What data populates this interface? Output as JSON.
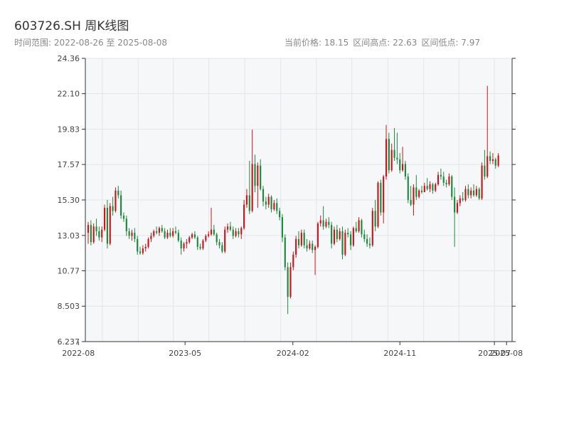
{
  "header": {
    "title": "603726.SH 周K线图",
    "range_label": "时间范围: 2022-08-26 至 2025-08-08",
    "current_price": "当前价格: 18.15",
    "range_high": "区间高点: 22.63",
    "range_low": "区间低点: 7.97"
  },
  "colors": {
    "up": "#c8161d",
    "down": "#1a8b3c",
    "plot_bg": "#f6f7f9",
    "grid": "#e3e5ea",
    "axis": "#333333"
  },
  "chart_data": {
    "type": "candlestick",
    "title": "603726.SH 周K线图",
    "start_date": "2022-08-26",
    "end_date": "2025-08-08",
    "ylim": [
      6.237,
      24.36
    ],
    "y_ticks": [
      "6.237",
      "8.503",
      "10.77",
      "13.03",
      "15.30",
      "17.57",
      "19.83",
      "22.10",
      "24.36"
    ],
    "x_ticks": [
      {
        "date": "2022-08-01",
        "label": "2022-08"
      },
      {
        "date": "2023-05-01",
        "label": "2023-05"
      },
      {
        "date": "2024-02-01",
        "label": "2024-02"
      },
      {
        "date": "2024-11-01",
        "label": "2024-11"
      },
      {
        "date": "2025-07-01",
        "label": "2025-07"
      },
      {
        "date": "2025-08-01",
        "label": "2025-08"
      }
    ],
    "grid": true,
    "candles": [
      [
        13.2,
        13.9,
        12.5,
        13.7
      ],
      [
        13.7,
        14.0,
        12.4,
        12.6
      ],
      [
        12.6,
        13.8,
        12.5,
        13.6
      ],
      [
        13.6,
        14.1,
        13.0,
        13.3
      ],
      [
        13.3,
        13.6,
        12.7,
        12.9
      ],
      [
        12.9,
        13.6,
        12.6,
        13.4
      ],
      [
        13.4,
        15.0,
        13.3,
        14.8
      ],
      [
        14.8,
        15.3,
        12.2,
        12.5
      ],
      [
        12.5,
        15.1,
        12.4,
        14.9
      ],
      [
        14.9,
        15.5,
        14.3,
        14.6
      ],
      [
        14.6,
        16.1,
        14.5,
        15.9
      ],
      [
        15.9,
        16.2,
        15.4,
        15.6
      ],
      [
        15.6,
        15.9,
        14.1,
        14.3
      ],
      [
        14.3,
        14.5,
        13.9,
        14.1
      ],
      [
        14.1,
        14.3,
        13.0,
        13.3
      ],
      [
        13.3,
        13.5,
        12.8,
        13.0
      ],
      [
        13.0,
        13.4,
        12.7,
        13.2
      ],
      [
        13.2,
        13.5,
        12.6,
        12.8
      ],
      [
        12.8,
        13.0,
        11.8,
        12.0
      ],
      [
        12.0,
        12.3,
        11.8,
        11.9
      ],
      [
        11.9,
        12.4,
        11.8,
        12.2
      ],
      [
        12.2,
        12.5,
        12.0,
        12.3
      ],
      [
        12.3,
        12.9,
        12.2,
        12.8
      ],
      [
        12.8,
        13.2,
        12.6,
        13.0
      ],
      [
        13.0,
        13.4,
        12.9,
        13.3
      ],
      [
        13.3,
        13.6,
        13.1,
        13.2
      ],
      [
        13.2,
        13.6,
        13.0,
        13.5
      ],
      [
        13.5,
        13.7,
        13.2,
        13.3
      ],
      [
        13.3,
        13.5,
        12.8,
        12.9
      ],
      [
        12.9,
        13.4,
        12.8,
        13.2
      ],
      [
        13.2,
        13.5,
        12.9,
        13.0
      ],
      [
        13.0,
        13.5,
        12.9,
        13.3
      ],
      [
        13.3,
        13.6,
        13.1,
        13.2
      ],
      [
        13.2,
        13.4,
        12.6,
        12.7
      ],
      [
        12.7,
        12.9,
        11.8,
        12.2
      ],
      [
        12.2,
        12.6,
        12.0,
        12.5
      ],
      [
        12.5,
        12.8,
        12.2,
        12.6
      ],
      [
        12.6,
        13.0,
        12.5,
        12.9
      ],
      [
        12.9,
        13.2,
        12.8,
        13.1
      ],
      [
        13.1,
        13.3,
        12.8,
        12.9
      ],
      [
        12.9,
        13.0,
        12.1,
        12.3
      ],
      [
        12.3,
        12.5,
        12.1,
        12.2
      ],
      [
        12.2,
        12.8,
        12.1,
        12.7
      ],
      [
        12.7,
        13.1,
        12.6,
        13.0
      ],
      [
        13.0,
        13.3,
        12.9,
        13.1
      ],
      [
        13.1,
        14.8,
        13.0,
        13.4
      ],
      [
        13.4,
        13.7,
        13.0,
        13.1
      ],
      [
        13.1,
        13.2,
        12.4,
        12.6
      ],
      [
        12.6,
        12.8,
        12.2,
        12.4
      ],
      [
        12.4,
        12.6,
        11.9,
        12.0
      ],
      [
        12.0,
        13.6,
        11.9,
        13.4
      ],
      [
        13.4,
        13.8,
        13.2,
        13.6
      ],
      [
        13.6,
        13.9,
        13.3,
        13.4
      ],
      [
        13.4,
        13.6,
        12.8,
        13.0
      ],
      [
        13.0,
        13.5,
        12.9,
        13.3
      ],
      [
        13.3,
        13.5,
        12.9,
        13.1
      ],
      [
        13.1,
        13.6,
        12.8,
        13.5
      ],
      [
        13.5,
        15.3,
        13.4,
        15.0
      ],
      [
        15.0,
        16.0,
        14.8,
        15.6
      ],
      [
        15.6,
        17.8,
        14.4,
        14.6
      ],
      [
        14.6,
        19.8,
        14.5,
        17.6
      ],
      [
        17.6,
        18.2,
        15.8,
        16.2
      ],
      [
        16.2,
        17.7,
        14.8,
        17.5
      ],
      [
        17.5,
        17.9,
        15.9,
        16.0
      ],
      [
        16.0,
        16.2,
        14.9,
        15.2
      ],
      [
        15.2,
        15.5,
        14.7,
        15.0
      ],
      [
        15.0,
        15.7,
        14.8,
        15.5
      ],
      [
        15.5,
        15.6,
        14.5,
        14.7
      ],
      [
        14.7,
        15.3,
        14.6,
        15.1
      ],
      [
        15.1,
        15.4,
        14.4,
        14.6
      ],
      [
        14.6,
        14.8,
        14.0,
        14.2
      ],
      [
        14.2,
        14.4,
        12.6,
        12.9
      ],
      [
        12.9,
        13.1,
        10.8,
        11.0
      ],
      [
        11.0,
        11.3,
        8.0,
        9.1
      ],
      [
        9.1,
        11.3,
        9.0,
        11.0
      ],
      [
        11.0,
        12.0,
        10.8,
        11.8
      ],
      [
        11.8,
        13.0,
        11.6,
        12.8
      ],
      [
        12.8,
        13.3,
        12.2,
        12.4
      ],
      [
        12.4,
        13.4,
        12.3,
        13.2
      ],
      [
        13.2,
        13.4,
        12.2,
        12.4
      ],
      [
        12.4,
        12.8,
        12.0,
        12.2
      ],
      [
        12.2,
        12.7,
        12.1,
        12.5
      ],
      [
        12.5,
        12.7,
        11.9,
        12.1
      ],
      [
        12.1,
        12.4,
        10.5,
        12.3
      ],
      [
        12.3,
        13.9,
        12.2,
        13.8
      ],
      [
        13.8,
        14.3,
        13.6,
        14.0
      ],
      [
        14.0,
        14.9,
        13.4,
        13.6
      ],
      [
        13.6,
        14.1,
        13.5,
        13.9
      ],
      [
        13.9,
        14.2,
        13.5,
        13.7
      ],
      [
        13.7,
        13.9,
        12.2,
        12.5
      ],
      [
        12.5,
        13.6,
        12.4,
        13.4
      ],
      [
        13.4,
        13.7,
        12.6,
        12.8
      ],
      [
        12.8,
        13.5,
        12.7,
        13.3
      ],
      [
        13.3,
        13.6,
        11.5,
        11.8
      ],
      [
        11.8,
        13.4,
        11.7,
        13.2
      ],
      [
        13.2,
        13.5,
        12.9,
        13.1
      ],
      [
        13.1,
        13.3,
        12.1,
        12.4
      ],
      [
        12.4,
        13.6,
        12.3,
        13.5
      ],
      [
        13.5,
        13.9,
        13.2,
        13.3
      ],
      [
        13.3,
        14.2,
        13.2,
        14.0
      ],
      [
        14.0,
        14.1,
        12.9,
        13.1
      ],
      [
        13.1,
        13.4,
        12.6,
        12.8
      ],
      [
        12.8,
        13.1,
        12.3,
        12.5
      ],
      [
        12.5,
        12.9,
        12.2,
        12.4
      ],
      [
        12.4,
        14.8,
        12.3,
        14.6
      ],
      [
        14.6,
        15.3,
        13.3,
        13.6
      ],
      [
        13.6,
        16.5,
        13.5,
        16.4
      ],
      [
        16.4,
        16.6,
        14.3,
        14.5
      ],
      [
        14.5,
        16.9,
        13.8,
        16.8
      ],
      [
        16.8,
        20.1,
        16.6,
        19.2
      ],
      [
        19.2,
        19.6,
        17.0,
        17.2
      ],
      [
        17.2,
        18.9,
        17.1,
        18.5
      ],
      [
        18.5,
        19.9,
        17.8,
        18.0
      ],
      [
        18.0,
        19.6,
        17.6,
        17.9
      ],
      [
        17.9,
        18.3,
        17.0,
        17.2
      ],
      [
        17.2,
        18.7,
        17.1,
        17.6
      ],
      [
        17.6,
        17.8,
        16.6,
        16.8
      ],
      [
        16.8,
        17.0,
        15.1,
        15.3
      ],
      [
        15.3,
        16.2,
        14.9,
        15.0
      ],
      [
        15.0,
        16.3,
        14.3,
        16.1
      ],
      [
        16.1,
        16.9,
        15.3,
        15.5
      ],
      [
        15.5,
        16.0,
        15.4,
        15.9
      ],
      [
        15.9,
        16.2,
        15.7,
        15.8
      ],
      [
        15.8,
        16.4,
        15.8,
        16.2
      ],
      [
        16.2,
        16.7,
        15.9,
        16.0
      ],
      [
        16.0,
        16.5,
        15.8,
        16.3
      ],
      [
        16.3,
        16.4,
        15.7,
        15.9
      ],
      [
        15.9,
        16.4,
        15.8,
        16.3
      ],
      [
        16.3,
        17.1,
        16.2,
        16.9
      ],
      [
        16.9,
        17.3,
        16.6,
        16.8
      ],
      [
        16.8,
        17.1,
        16.2,
        16.4
      ],
      [
        16.4,
        16.6,
        16.1,
        16.3
      ],
      [
        16.3,
        17.0,
        16.2,
        16.8
      ],
      [
        16.8,
        16.9,
        15.3,
        15.5
      ],
      [
        15.5,
        16.1,
        12.3,
        14.5
      ],
      [
        14.5,
        15.3,
        14.4,
        15.1
      ],
      [
        15.1,
        15.6,
        14.9,
        15.4
      ],
      [
        15.4,
        15.8,
        15.2,
        15.3
      ],
      [
        15.3,
        16.2,
        15.2,
        16.0
      ],
      [
        16.0,
        16.3,
        15.4,
        15.6
      ],
      [
        15.6,
        16.1,
        15.4,
        15.9
      ],
      [
        15.9,
        16.3,
        15.5,
        15.6
      ],
      [
        15.6,
        16.2,
        15.5,
        16.0
      ],
      [
        16.0,
        16.1,
        15.3,
        15.4
      ],
      [
        15.4,
        17.7,
        15.3,
        17.5
      ],
      [
        17.5,
        18.5,
        16.6,
        16.8
      ],
      [
        16.8,
        22.6,
        16.7,
        18.1
      ],
      [
        18.1,
        18.4,
        17.6,
        17.8
      ],
      [
        17.8,
        18.3,
        17.6,
        17.9
      ],
      [
        17.9,
        18.0,
        17.3,
        17.5
      ],
      [
        17.5,
        18.3,
        17.4,
        18.15
      ]
    ]
  }
}
